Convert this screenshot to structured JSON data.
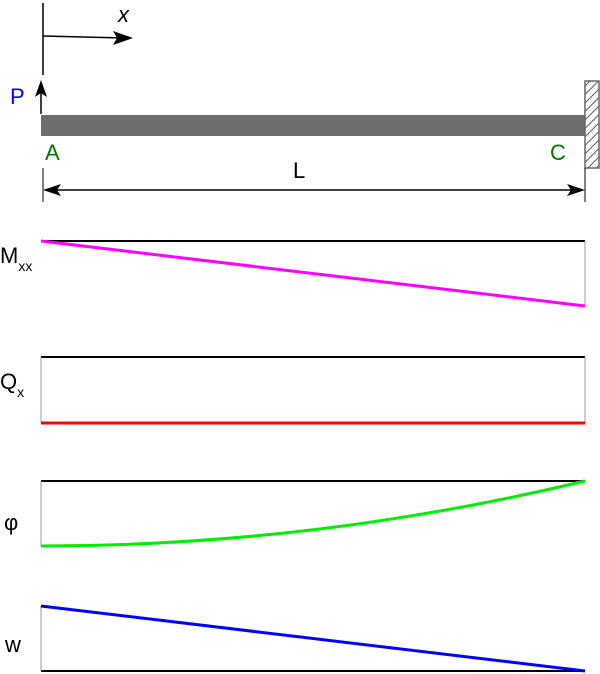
{
  "beam": {
    "axis_label": "x",
    "load_label": "P",
    "point_left": "A",
    "point_right": "C",
    "length_label": "L",
    "support": "fixed wall at right end",
    "load_direction": "upward"
  },
  "diagrams": [
    {
      "symbol": "M",
      "subscript": "xx",
      "color": "#ff00ff",
      "shape": "linear, zero at A, maximum at C"
    },
    {
      "symbol": "Q",
      "subscript": "x",
      "color": "#ff0000",
      "shape": "constant"
    },
    {
      "symbol": "φ",
      "subscript": "",
      "color": "#00ee00",
      "shape": "quadratic, maximum at A, zero at C"
    },
    {
      "symbol": "w",
      "subscript": "",
      "color": "#0000ff",
      "shape": "maximum at A, zero at C"
    }
  ],
  "colors": {
    "load_label": "#0000ff",
    "point_labels": "#007700",
    "beam": "#6e6e6e",
    "baseline": "#000000"
  }
}
